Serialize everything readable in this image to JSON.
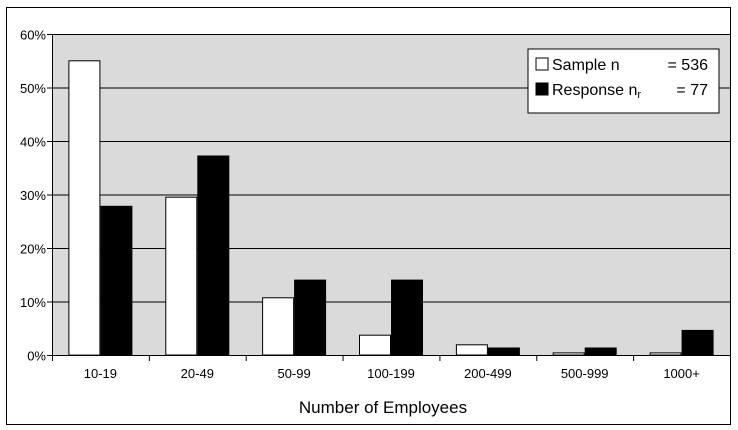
{
  "chart_data": {
    "type": "bar",
    "title": "",
    "xlabel": "Number of Employees",
    "ylabel": "",
    "categories": [
      "10-19",
      "20-49",
      "50-99",
      "100-199",
      "200-499",
      "500-999",
      "1000+"
    ],
    "series": [
      {
        "name": "Sample",
        "values": [
          55,
          29.5,
          10.7,
          3.7,
          1.9,
          0.4,
          0.4
        ],
        "color": "#ffffff"
      },
      {
        "name": "Response",
        "values": [
          27.8,
          37.2,
          14,
          14,
          1.3,
          1.3,
          4.6
        ],
        "color": "#000000"
      }
    ],
    "ylim": [
      0,
      60
    ],
    "yticks": [
      0,
      10,
      20,
      30,
      40,
      50,
      60
    ],
    "ytick_format": "percent",
    "grid": true,
    "plot_background": "#dadada",
    "legend": {
      "placement": "top-right",
      "entries": [
        {
          "prefix": "Sample n",
          "sub": "",
          "value": "= 536"
        },
        {
          "prefix": "Response n",
          "sub": "r",
          "value": "=   77"
        }
      ]
    }
  }
}
